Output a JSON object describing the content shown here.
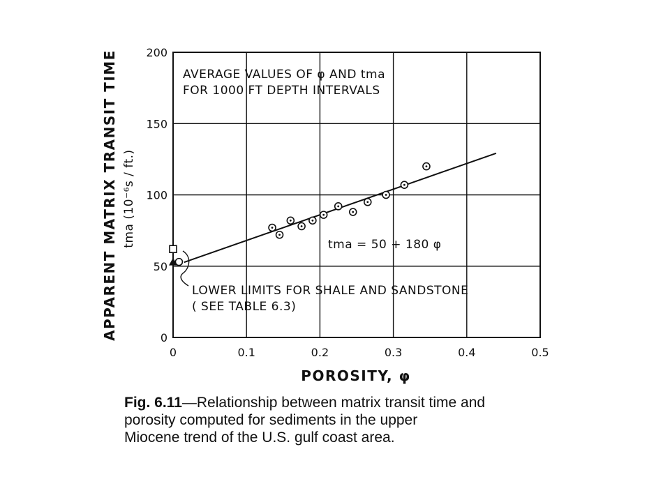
{
  "chart_data": {
    "type": "scatter",
    "x": {
      "label": "POROSITY, φ",
      "range": [
        0,
        0.5
      ],
      "ticks": [
        "0",
        "0.1",
        "0.2",
        "0.3",
        "0.4",
        "0.5"
      ]
    },
    "y": {
      "label_line1": "APPARENT MATRIX TRANSIT TIME",
      "label_line2": "tma (10⁻⁶s / ft.)",
      "range": [
        0,
        200
      ],
      "ticks": [
        "0",
        "50",
        "100",
        "150",
        "200"
      ]
    },
    "grid": true,
    "series": [
      {
        "marker": "circle-dot",
        "points": [
          {
            "x": 0.135,
            "y": 77
          },
          {
            "x": 0.145,
            "y": 72
          },
          {
            "x": 0.16,
            "y": 82
          },
          {
            "x": 0.175,
            "y": 78
          },
          {
            "x": 0.19,
            "y": 82
          },
          {
            "x": 0.205,
            "y": 86
          },
          {
            "x": 0.225,
            "y": 92
          },
          {
            "x": 0.245,
            "y": 88
          },
          {
            "x": 0.265,
            "y": 95
          },
          {
            "x": 0.29,
            "y": 100
          },
          {
            "x": 0.315,
            "y": 107
          },
          {
            "x": 0.345,
            "y": 120
          }
        ]
      },
      {
        "marker": "square",
        "points": [
          {
            "x": 0.0,
            "y": 62
          }
        ]
      },
      {
        "marker": "triangle",
        "points": [
          {
            "x": 0.0,
            "y": 53
          }
        ]
      },
      {
        "marker": "circle",
        "points": [
          {
            "x": 0.008,
            "y": 53
          }
        ]
      }
    ],
    "fit_line": {
      "intercept": 50,
      "slope": 180,
      "x_range": [
        0.015,
        0.44
      ]
    },
    "annotations": {
      "box_line1": "AVERAGE VALUES OF φ AND tma",
      "box_line2": "FOR 1000 FT DEPTH INTERVALS",
      "equation": "tma = 50 + 180 φ",
      "limits_line1": "LOWER LIMITS FOR SHALE AND SANDSTONE",
      "limits_line2": "( SEE TABLE 6.3)"
    }
  },
  "caption": {
    "fig_label": "Fig. 6.11",
    "line1": "—Relationship  between  matrix  transit  time  and",
    "line2": "porosity  computed  for  sediments  in  the  upper",
    "line3": "Miocene trend of the U.S. gulf coast area."
  }
}
